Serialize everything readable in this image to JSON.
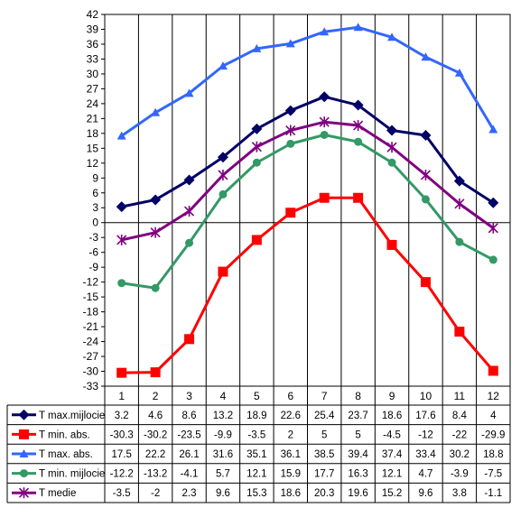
{
  "chart_data": {
    "type": "line",
    "title": "",
    "xlabel": "",
    "ylabel": "",
    "categories": [
      "1",
      "2",
      "3",
      "4",
      "5",
      "6",
      "7",
      "8",
      "9",
      "10",
      "11",
      "12"
    ],
    "ylim": [
      -33,
      42
    ],
    "yticks": [
      42,
      39,
      36,
      33,
      30,
      27,
      24,
      21,
      18,
      15,
      12,
      9,
      6,
      3,
      0,
      -3,
      -6,
      -9,
      -12,
      -15,
      -18,
      -21,
      -24,
      -27,
      -30,
      -33
    ],
    "grid": "vertical",
    "legend": "data-table-below",
    "series": [
      {
        "name": "T max.mijlocie",
        "color": "#000066",
        "marker": "diamond",
        "values": [
          3.2,
          4.6,
          8.6,
          13.2,
          18.9,
          22.6,
          25.4,
          23.7,
          18.6,
          17.6,
          8.4,
          4
        ],
        "labels": [
          "3.2",
          "4.6",
          "8.6",
          "13.2",
          "18.9",
          "22.6",
          "25.4",
          "23.7",
          "18.6",
          "17.6",
          "8.4",
          "4"
        ]
      },
      {
        "name": "T min. abs.",
        "color": "#ff0000",
        "marker": "square",
        "values": [
          -30.3,
          -30.2,
          -23.5,
          -9.9,
          -3.5,
          2,
          5,
          5,
          -4.5,
          -12,
          -22,
          -29.9
        ],
        "labels": [
          "-30.3",
          "-30.2",
          "-23.5",
          "-9.9",
          "-3.5",
          "2",
          "5",
          "5",
          "-4.5",
          "-12",
          "-22",
          "-29.9"
        ]
      },
      {
        "name": "T max. abs.",
        "color": "#3366ff",
        "marker": "triangle",
        "values": [
          17.5,
          22.2,
          26.1,
          31.6,
          35.1,
          36.1,
          38.5,
          39.4,
          37.4,
          33.4,
          30.2,
          18.8
        ],
        "labels": [
          "17.5",
          "22.2",
          "26.1",
          "31.6",
          "35.1",
          "36.1",
          "38.5",
          "39.4",
          "37.4",
          "33.4",
          "30.2",
          "18.8"
        ]
      },
      {
        "name": "T min. mijlocie",
        "color": "#339966",
        "marker": "circle",
        "values": [
          -12.2,
          -13.2,
          -4.1,
          5.7,
          12.1,
          15.9,
          17.7,
          16.3,
          12.1,
          4.7,
          -3.9,
          -7.5
        ],
        "labels": [
          "-12.2",
          "-13.2",
          "-4.1",
          "5.7",
          "12.1",
          "15.9",
          "17.7",
          "16.3",
          "12.1",
          "4.7",
          "-3.9",
          "-7.5"
        ]
      },
      {
        "name": "T medie",
        "color": "#800080",
        "marker": "star",
        "values": [
          -3.5,
          -2,
          2.3,
          9.6,
          15.3,
          18.6,
          20.3,
          19.6,
          15.2,
          9.6,
          3.8,
          -1.1
        ],
        "labels": [
          "-3.5",
          "-2",
          "2.3",
          "9.6",
          "15.3",
          "18.6",
          "20.3",
          "19.6",
          "15.2",
          "9.6",
          "3.8",
          "-1.1"
        ]
      }
    ]
  }
}
